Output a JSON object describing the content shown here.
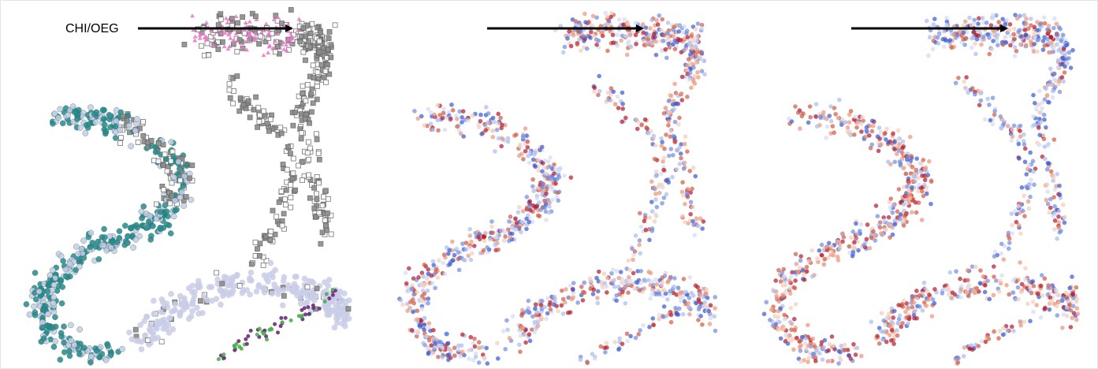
{
  "annotation": {
    "label": "CHI/OEG"
  }
}
